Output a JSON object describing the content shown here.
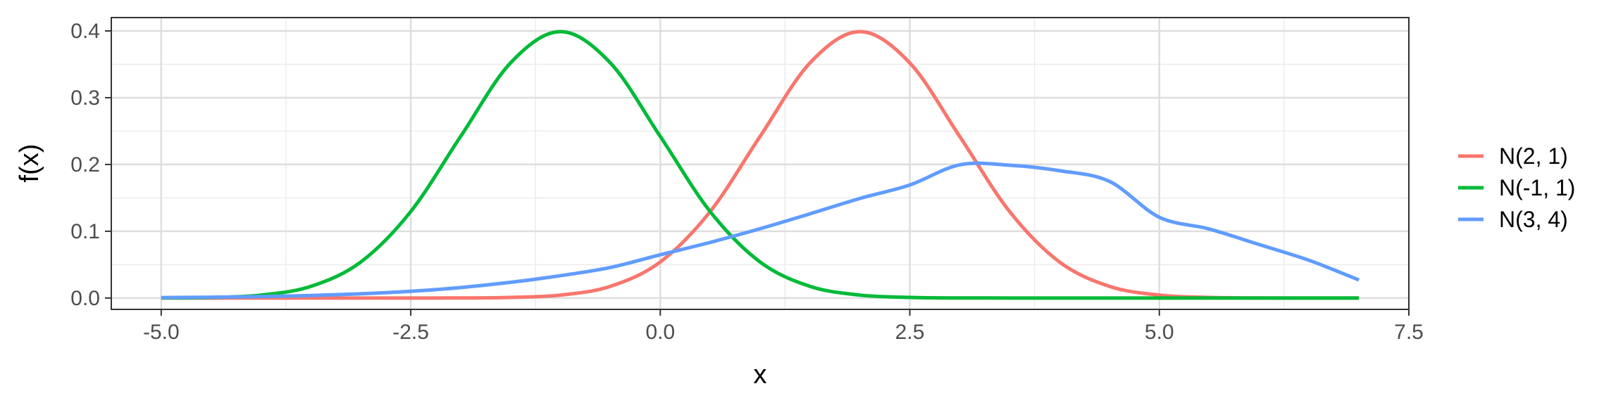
{
  "chart_data": {
    "type": "line",
    "title": "",
    "xlabel": "x",
    "ylabel": "f(x)",
    "xlim": [
      -5.5,
      7.5
    ],
    "ylim": [
      -0.017,
      0.42
    ],
    "x_ticks": [
      -5.0,
      -2.5,
      0.0,
      2.5,
      5.0,
      7.5
    ],
    "x_tick_labels": [
      "-5.0",
      "-2.5",
      "0.0",
      "2.5",
      "5.0",
      "7.5"
    ],
    "y_ticks": [
      0.0,
      0.1,
      0.2,
      0.3,
      0.4
    ],
    "y_tick_labels": [
      "0.0",
      "0.1",
      "0.2",
      "0.3",
      "0.4"
    ],
    "grid": true,
    "legend_position": "right",
    "x": [
      -5.0,
      -4.5,
      -4.0,
      -3.5,
      -3.0,
      -2.5,
      -2.0,
      -1.5,
      -1.0,
      -0.5,
      0.0,
      0.5,
      1.0,
      1.5,
      2.0,
      2.5,
      3.0,
      3.5,
      4.0,
      4.5,
      5.0,
      5.5,
      6.0,
      6.5,
      7.0
    ],
    "series": [
      {
        "name": "N(2, 1)",
        "color": "#F8766D",
        "values": [
          0.0,
          0.0,
          0.0,
          0.0,
          0.0,
          0.0,
          0.0001,
          0.0009,
          0.0044,
          0.0175,
          0.054,
          0.1295,
          0.242,
          0.3521,
          0.3989,
          0.3521,
          0.242,
          0.1295,
          0.054,
          0.0175,
          0.0044,
          0.0009,
          0.0001,
          0.0,
          0.0
        ]
      },
      {
        "name": "N(-1, 1)",
        "color": "#00BA38",
        "values": [
          0.0001,
          0.0009,
          0.0044,
          0.0175,
          0.054,
          0.1295,
          0.242,
          0.3521,
          0.3989,
          0.3521,
          0.242,
          0.1295,
          0.054,
          0.0175,
          0.0044,
          0.0009,
          0.0001,
          0.0,
          0.0,
          0.0,
          0.0,
          0.0,
          0.0,
          0.0,
          0.0
        ]
      },
      {
        "name": "N(3, 4)",
        "color": "#619CFF",
        "values": [
          0.0007,
          0.0012,
          0.0022,
          0.0038,
          0.0063,
          0.0101,
          0.0157,
          0.0235,
          0.0335,
          0.0457,
          0.0648,
          0.0833,
          0.1038,
          0.1261,
          0.1491,
          0.1693,
          0.1995,
          0.1989,
          0.1907,
          0.1747,
          0.121,
          0.1034,
          0.0801,
          0.0565,
          0.027
        ]
      }
    ]
  }
}
